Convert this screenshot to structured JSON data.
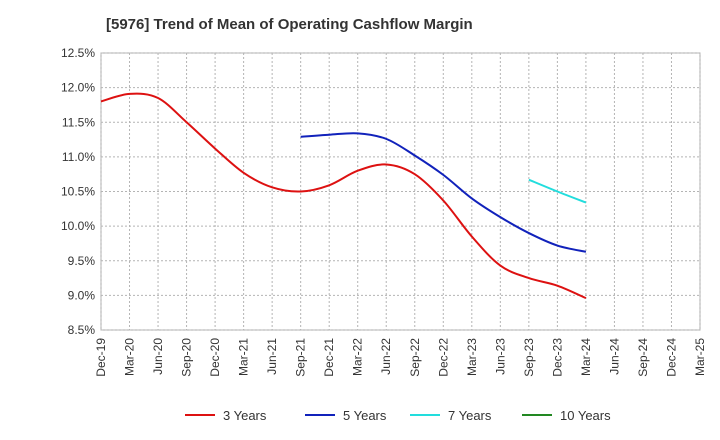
{
  "chart_data": {
    "type": "line",
    "title": "[5976]  Trend of Mean of Operating Cashflow Margin",
    "xlabel": "",
    "ylabel": "",
    "x_labels": [
      "Dec-19",
      "Mar-20",
      "Jun-20",
      "Sep-20",
      "Dec-20",
      "Mar-21",
      "Jun-21",
      "Sep-21",
      "Dec-21",
      "Mar-22",
      "Jun-22",
      "Sep-22",
      "Dec-22",
      "Mar-23",
      "Jun-23",
      "Sep-23",
      "Dec-23",
      "Mar-24",
      "Jun-24",
      "Sep-24",
      "Dec-24",
      "Mar-25"
    ],
    "ylim": [
      8.5,
      12.5
    ],
    "y_ticks": [
      8.5,
      9.0,
      9.5,
      10.0,
      10.5,
      11.0,
      11.5,
      12.0,
      12.5
    ],
    "y_tick_labels": [
      "8.5%",
      "9.0%",
      "9.5%",
      "10.0%",
      "10.5%",
      "11.0%",
      "11.5%",
      "12.0%",
      "12.5%"
    ],
    "grid": true,
    "legend_position": "bottom",
    "series": [
      {
        "name": "3 Years",
        "color": "#dd1111",
        "x": [
          "Dec-19",
          "Mar-20",
          "Jun-20",
          "Sep-20",
          "Dec-20",
          "Mar-21",
          "Jun-21",
          "Sep-21",
          "Dec-21",
          "Mar-22",
          "Jun-22",
          "Sep-22",
          "Dec-22",
          "Mar-23",
          "Jun-23",
          "Sep-23",
          "Dec-23",
          "Mar-24"
        ],
        "values": [
          11.8,
          11.91,
          11.85,
          11.5,
          11.12,
          10.77,
          10.56,
          10.5,
          10.59,
          10.8,
          10.89,
          10.75,
          10.37,
          9.85,
          9.43,
          9.25,
          9.14,
          8.96
        ]
      },
      {
        "name": "5 Years",
        "color": "#1122bb",
        "x": [
          "Sep-21",
          "Dec-21",
          "Mar-22",
          "Jun-22",
          "Sep-22",
          "Dec-22",
          "Mar-23",
          "Jun-23",
          "Sep-23",
          "Dec-23",
          "Mar-24"
        ],
        "values": [
          11.29,
          11.32,
          11.34,
          11.26,
          11.02,
          10.74,
          10.4,
          10.13,
          9.9,
          9.72,
          9.63
        ]
      },
      {
        "name": "7 Years",
        "color": "#22dddd",
        "x": [
          "Sep-23",
          "Dec-23",
          "Mar-24"
        ],
        "values": [
          10.67,
          10.5,
          10.34
        ]
      },
      {
        "name": "10 Years",
        "color": "#228822",
        "x": [],
        "values": []
      }
    ]
  }
}
